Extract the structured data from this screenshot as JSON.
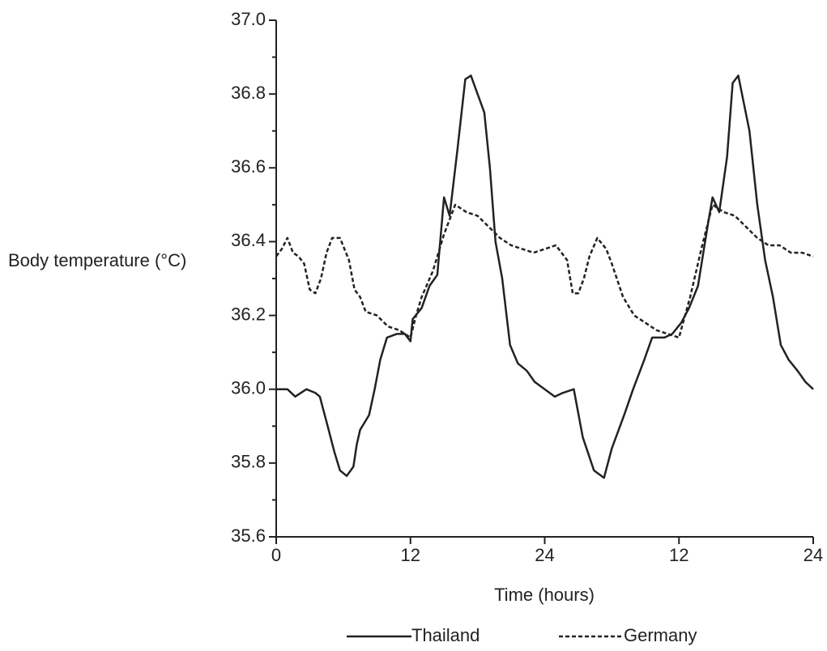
{
  "chart_data": {
    "type": "line",
    "xlabel": "Time (hours)",
    "ylabel": "Body temperature (°C)",
    "xlim": [
      0,
      48
    ],
    "xticks": [
      0,
      12,
      24,
      {
        "value": 36,
        "label": "12"
      },
      {
        "value": 48,
        "label": "24"
      }
    ],
    "ylim": [
      35.6,
      37.0
    ],
    "yticks": [
      {
        "value": 35.6,
        "label": "35.6"
      },
      35.8,
      {
        "value": 36.0,
        "label": "36.0"
      },
      36.2,
      36.4,
      36.6,
      36.8,
      {
        "value": 37.0,
        "label": "37.0"
      }
    ],
    "yminorticks": [
      35.7,
      35.9,
      36.1,
      36.3,
      36.5,
      36.7,
      36.9
    ],
    "legend": "bottom",
    "series": [
      {
        "name": "Thailand",
        "color": "#222222",
        "style": "solid",
        "x": [
          0,
          1,
          1.7,
          2.7,
          3.5,
          3.9,
          4.6,
          5.2,
          5.7,
          6.3,
          6.9,
          7.2,
          7.5,
          8.3,
          8.8,
          9.3,
          9.9,
          10.8,
          11.5,
          12,
          12.2,
          13,
          13.7,
          14.4,
          15,
          15.5,
          16.2,
          16.9,
          17.4,
          18,
          18.6,
          19.1,
          19.6,
          20.2,
          20.9,
          21.6,
          22.4,
          23.1,
          24,
          24.9,
          25.6,
          26.6,
          27.4,
          28.4,
          29.3,
          30,
          31.1,
          31.9,
          32.9,
          33.6,
          34.7,
          35.4,
          36.2,
          36.9,
          37.7,
          38.6,
          39,
          39.6,
          40.3,
          40.8,
          41.3,
          42.3,
          43,
          43.7,
          44.4,
          45.1,
          45.8,
          46.6,
          47.3,
          48
        ],
        "values": [
          36.0,
          36.0,
          35.98,
          36.0,
          35.99,
          35.98,
          35.9,
          35.83,
          35.78,
          35.765,
          35.79,
          35.85,
          35.89,
          35.93,
          36.0,
          36.08,
          36.14,
          36.15,
          36.15,
          36.13,
          36.19,
          36.22,
          36.28,
          36.31,
          36.52,
          36.47,
          36.65,
          36.84,
          36.85,
          36.8,
          36.75,
          36.6,
          36.4,
          36.3,
          36.12,
          36.07,
          36.05,
          36.02,
          36.0,
          35.98,
          35.99,
          36.0,
          35.87,
          35.78,
          35.76,
          35.84,
          35.93,
          36.0,
          36.08,
          36.14,
          36.14,
          36.15,
          36.18,
          36.22,
          36.28,
          36.45,
          36.52,
          36.48,
          36.63,
          36.83,
          36.85,
          36.7,
          36.5,
          36.35,
          36.25,
          36.12,
          36.08,
          36.05,
          36.02,
          36.0
        ]
      },
      {
        "name": "Germany",
        "color": "#222222",
        "style": "dashed",
        "x": [
          0,
          0.5,
          1,
          1.5,
          2,
          2.5,
          3,
          3.5,
          4,
          4.5,
          5,
          5.7,
          6.5,
          7,
          7.5,
          8,
          9,
          10,
          11,
          12,
          12.5,
          13,
          14,
          15,
          16,
          17,
          18,
          19,
          20,
          21,
          22,
          23,
          24,
          25,
          26,
          26.5,
          27,
          27.5,
          28,
          28.7,
          29.5,
          30,
          31,
          32,
          33,
          34,
          35,
          36,
          37,
          38,
          39,
          40,
          41,
          42,
          43,
          44,
          45,
          46,
          47,
          48
        ],
        "values": [
          36.36,
          36.38,
          36.41,
          36.37,
          36.36,
          36.34,
          36.27,
          36.26,
          36.3,
          36.37,
          36.41,
          36.41,
          36.35,
          36.27,
          36.25,
          36.21,
          36.2,
          36.17,
          36.16,
          36.14,
          36.2,
          36.25,
          36.32,
          36.42,
          36.5,
          36.48,
          36.47,
          36.44,
          36.41,
          36.39,
          36.38,
          36.37,
          36.38,
          36.39,
          36.35,
          36.26,
          36.26,
          36.3,
          36.36,
          36.41,
          36.38,
          36.34,
          36.25,
          36.2,
          36.18,
          36.16,
          36.15,
          36.14,
          36.25,
          36.38,
          36.5,
          36.48,
          36.47,
          36.44,
          36.41,
          36.39,
          36.39,
          36.37,
          36.37,
          36.36
        ]
      }
    ]
  }
}
